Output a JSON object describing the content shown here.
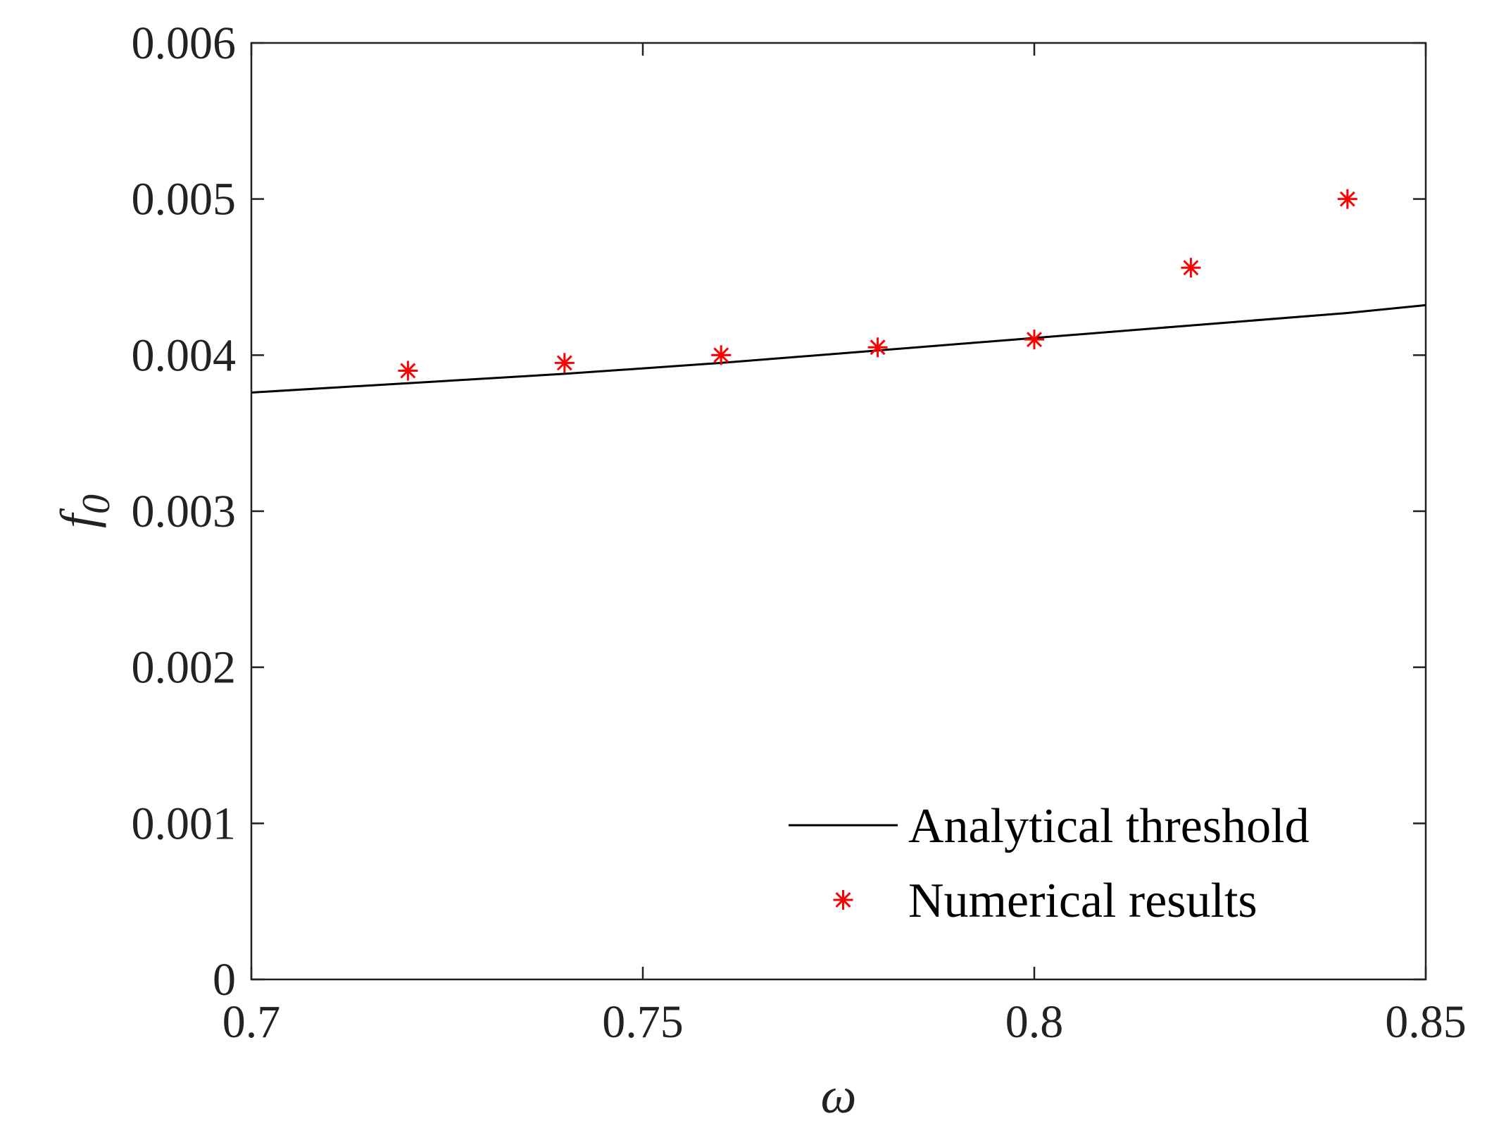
{
  "chart_data": {
    "type": "line",
    "title": "",
    "xlabel": "ω",
    "ylabel": "f",
    "ylabel_subscript": "0",
    "xlim": [
      0.7,
      0.85
    ],
    "ylim": [
      0,
      0.006
    ],
    "xticks": [
      0.7,
      0.75,
      0.8,
      0.85
    ],
    "xtick_labels": [
      "0.7",
      "0.75",
      "0.8",
      "0.85"
    ],
    "yticks": [
      0,
      0.001,
      0.002,
      0.003,
      0.004,
      0.005,
      0.006
    ],
    "ytick_labels": [
      "0",
      "0.001",
      "0.002",
      "0.003",
      "0.004",
      "0.005",
      "0.006"
    ],
    "grid": false,
    "legend_position": "bottom-right",
    "series": [
      {
        "name": "Analytical threshold",
        "style": "line",
        "color": "#000000",
        "x": [
          0.7,
          0.72,
          0.74,
          0.76,
          0.78,
          0.8,
          0.82,
          0.84,
          0.85
        ],
        "y": [
          0.00376,
          0.00382,
          0.00388,
          0.00395,
          0.00403,
          0.00411,
          0.00419,
          0.00427,
          0.00432
        ]
      },
      {
        "name": "Numerical results",
        "style": "marker-asterisk",
        "color": "#ff0000",
        "x": [
          0.72,
          0.74,
          0.76,
          0.78,
          0.8,
          0.82,
          0.84
        ],
        "y": [
          0.0039,
          0.00395,
          0.004,
          0.00405,
          0.0041,
          0.00456,
          0.005
        ]
      }
    ]
  }
}
